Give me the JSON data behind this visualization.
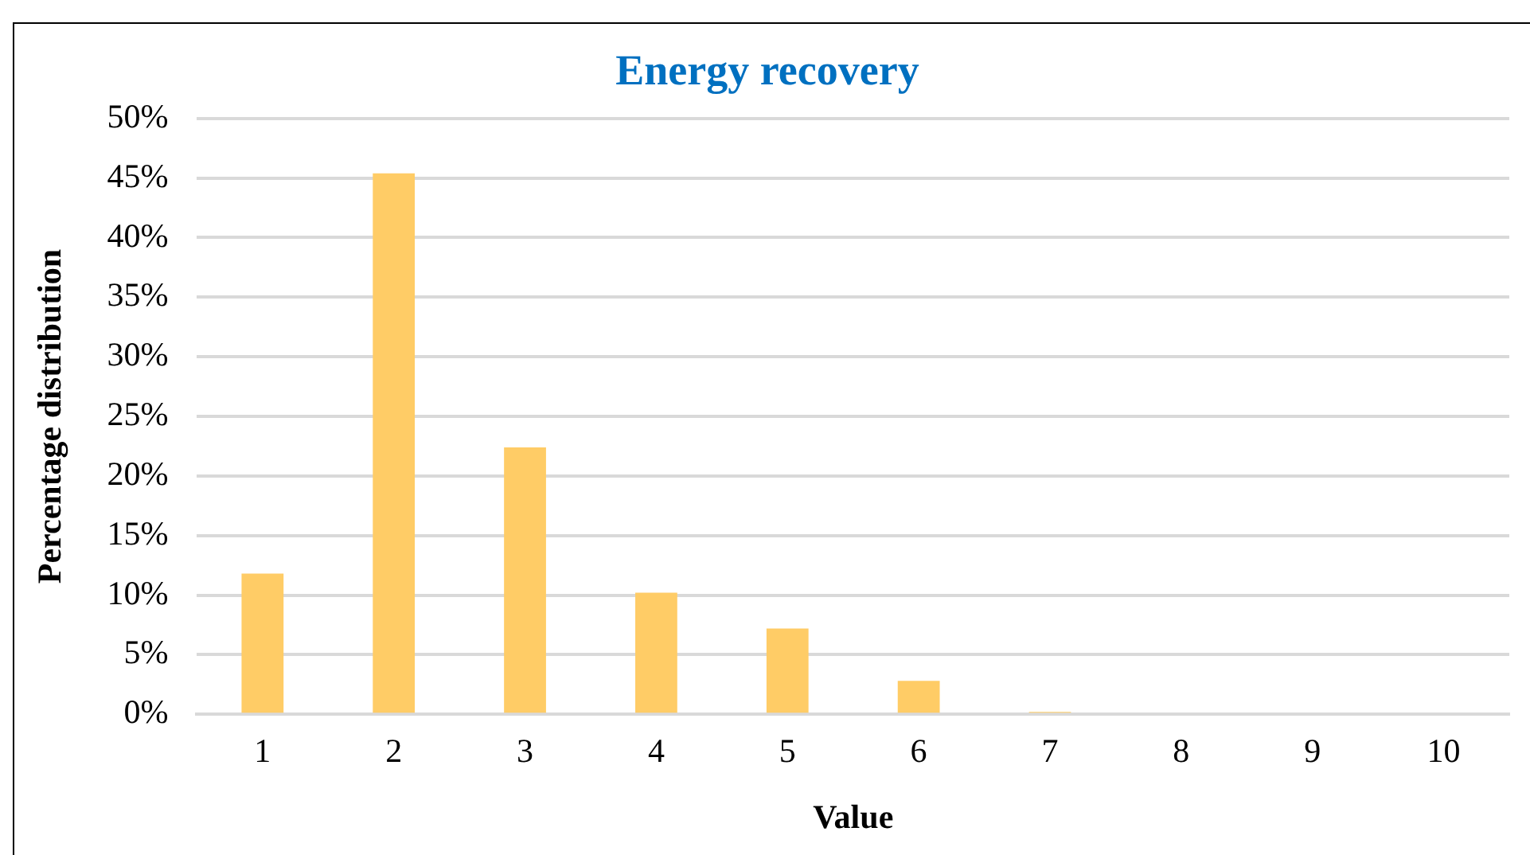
{
  "chart_data": {
    "type": "bar",
    "title": "Energy recovery",
    "xlabel": "Value",
    "ylabel": "Percentage distribution",
    "categories": [
      "1",
      "2",
      "3",
      "4",
      "5",
      "6",
      "7",
      "8",
      "9",
      "10"
    ],
    "values": [
      11.8,
      45.4,
      22.4,
      10.2,
      7.2,
      2.8,
      0.2,
      0,
      0,
      0
    ],
    "color": "#ffcc66",
    "ylim": [
      0,
      50
    ],
    "yticks": [
      {
        "value": 0,
        "label": "0%"
      },
      {
        "value": 5,
        "label": "5%"
      },
      {
        "value": 10,
        "label": "10%"
      },
      {
        "value": 15,
        "label": "15%"
      },
      {
        "value": 20,
        "label": "20%"
      },
      {
        "value": 25,
        "label": "25%"
      },
      {
        "value": 30,
        "label": "30%"
      },
      {
        "value": 35,
        "label": "35%"
      },
      {
        "value": 40,
        "label": "40%"
      },
      {
        "value": 45,
        "label": "45%"
      },
      {
        "value": 50,
        "label": "50%"
      }
    ],
    "grid": "y",
    "legend": false
  }
}
